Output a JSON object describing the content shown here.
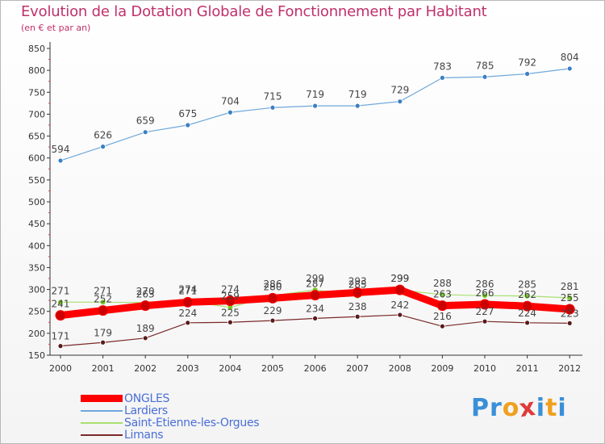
{
  "title": "Evolution de la Dotation Globale de Fonctionnement par Habitant",
  "subtitle": "(en € et par an)",
  "logo": {
    "text": "Proxiti",
    "letters": [
      "P",
      "r",
      "o",
      "x",
      "i",
      "t",
      "i"
    ],
    "colors": [
      "#3a8fd8",
      "#3a8fd8",
      "#f0a020",
      "#e03a3a",
      "#3a8fd8",
      "#f0a020",
      "#3a8fd8"
    ]
  },
  "chart_data": {
    "type": "line",
    "x": [
      "2000",
      "2001",
      "2002",
      "2003",
      "2004",
      "2005",
      "2006",
      "2007",
      "2008",
      "2009",
      "2010",
      "2011",
      "2012"
    ],
    "yticks": [
      150,
      200,
      250,
      300,
      350,
      400,
      450,
      500,
      550,
      600,
      650,
      700,
      750,
      800,
      850
    ],
    "ylim": [
      150,
      850
    ],
    "grid": false,
    "legend_position": "bottom-left",
    "series": [
      {
        "name": "ONGLES",
        "color": "#ff0000",
        "values": [
          241,
          252,
          263,
          271,
          274,
          280,
          287,
          293,
          299,
          263,
          266,
          262,
          255
        ]
      },
      {
        "name": "Lardiers",
        "color": "#6fa8dc",
        "values": [
          594,
          626,
          659,
          675,
          704,
          715,
          719,
          719,
          729,
          783,
          785,
          792,
          804
        ]
      },
      {
        "name": "Saint-Etienne-les-Orgues",
        "color": "#a8e070",
        "values": [
          271,
          271,
          270,
          274,
          259,
          286,
          299,
          285,
          299,
          288,
          286,
          285,
          281
        ]
      },
      {
        "name": "Limans",
        "color": "#7a2a2a",
        "values": [
          171,
          179,
          189,
          224,
          225,
          229,
          234,
          238,
          242,
          216,
          227,
          224,
          223
        ]
      }
    ]
  }
}
